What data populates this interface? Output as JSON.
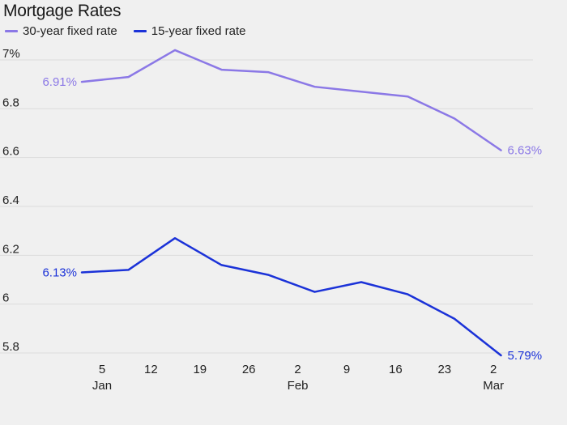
{
  "title": "Mortgage Rates",
  "colors": {
    "series_30": "#8b78e6",
    "series_15": "#1b32d8",
    "grid": "#dcdcdc"
  },
  "chart_data": {
    "type": "line",
    "title": "Mortgage Rates",
    "xlabel": "",
    "ylabel": "",
    "ylim": [
      5.8,
      7.0
    ],
    "grid": true,
    "legend_position": "top-left",
    "y_ticks": [
      {
        "value": 7.0,
        "label": "7%"
      },
      {
        "value": 6.8,
        "label": "6.8"
      },
      {
        "value": 6.6,
        "label": "6.6"
      },
      {
        "value": 6.4,
        "label": "6.4"
      },
      {
        "value": 6.2,
        "label": "6.2"
      },
      {
        "value": 6.0,
        "label": "6"
      },
      {
        "value": 5.8,
        "label": "5.8"
      }
    ],
    "x_ticks": [
      {
        "day": "5",
        "month": "Jan"
      },
      {
        "day": "12",
        "month": ""
      },
      {
        "day": "19",
        "month": ""
      },
      {
        "day": "26",
        "month": ""
      },
      {
        "day": "2",
        "month": "Feb"
      },
      {
        "day": "9",
        "month": ""
      },
      {
        "day": "16",
        "month": ""
      },
      {
        "day": "23",
        "month": ""
      },
      {
        "day": "2",
        "month": "Mar"
      }
    ],
    "x": [
      "Jan 2",
      "Jan 9",
      "Jan 16",
      "Jan 23",
      "Jan 30",
      "Feb 6",
      "Feb 13",
      "Feb 20",
      "Feb 27",
      "Mar 6"
    ],
    "series": [
      {
        "name": "30-year fixed rate",
        "values": [
          6.91,
          6.93,
          7.04,
          6.96,
          6.95,
          6.89,
          6.87,
          6.85,
          6.76,
          6.63
        ],
        "start_label": "6.91%",
        "end_label": "6.63%"
      },
      {
        "name": "15-year fixed rate",
        "values": [
          6.13,
          6.14,
          6.27,
          6.16,
          6.12,
          6.05,
          6.09,
          6.04,
          5.94,
          5.79
        ],
        "start_label": "6.13%",
        "end_label": "5.79%"
      }
    ]
  }
}
